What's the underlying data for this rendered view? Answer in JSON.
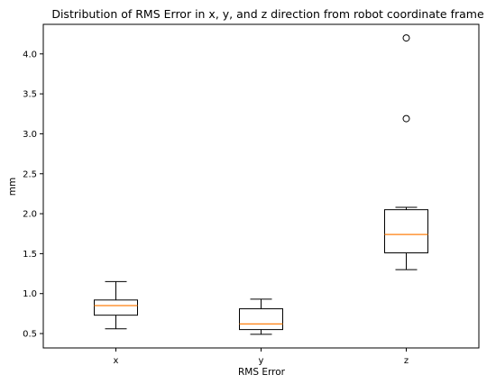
{
  "chart_data": {
    "type": "box",
    "title": "Distribution of RMS Error in x, y, and z direction from robot coordinate frame",
    "xlabel": "RMS Error",
    "ylabel": "mm",
    "ylim": [
      0.32,
      4.37
    ],
    "yticks": [
      0.5,
      1.0,
      1.5,
      2.0,
      2.5,
      3.0,
      3.5,
      4.0
    ],
    "ytick_labels": [
      "0.5",
      "1.0",
      "1.5",
      "2.0",
      "2.5",
      "3.0",
      "3.5",
      "4.0"
    ],
    "categories": [
      "x",
      "y",
      "z"
    ],
    "boxes": [
      {
        "category": "x",
        "whisker_low": 0.56,
        "q1": 0.73,
        "median": 0.85,
        "q3": 0.92,
        "whisker_high": 1.15,
        "outliers": []
      },
      {
        "category": "y",
        "whisker_low": 0.49,
        "q1": 0.55,
        "median": 0.62,
        "q3": 0.81,
        "whisker_high": 0.93,
        "outliers": []
      },
      {
        "category": "z",
        "whisker_low": 1.3,
        "q1": 1.51,
        "median": 1.74,
        "q3": 2.05,
        "whisker_high": 2.08,
        "outliers": [
          3.19,
          4.2
        ]
      }
    ],
    "grid": false,
    "legend": "none",
    "colors": {
      "box": "#000000",
      "median": "#ff7f0e",
      "background": "#ffffff"
    }
  }
}
